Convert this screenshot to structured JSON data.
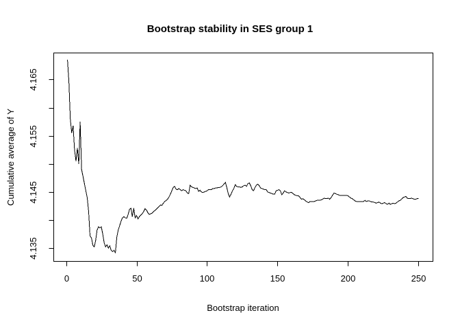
{
  "chart_data": {
    "type": "line",
    "title": "Bootstrap stability in SES group 1",
    "xlabel": "Bootstrap iteration",
    "ylabel": "Cumulative average of Y",
    "x_ticks": [
      0,
      50,
      100,
      150,
      200,
      250
    ],
    "y_ticks": [
      4.135,
      4.14,
      4.145,
      4.15,
      4.155,
      4.16,
      4.165
    ],
    "y_tick_labels": [
      "4.135",
      "",
      "4.145",
      "",
      "4.155",
      "",
      "4.165"
    ],
    "xlim": [
      -9,
      260
    ],
    "ylim": [
      4.1327,
      4.1698
    ],
    "x_start": 1,
    "grid": false,
    "line_color": "#000000",
    "axis_color": "#000000",
    "background_color": "#ffffff",
    "values": [
      4.1685,
      4.1645,
      4.158,
      4.1555,
      4.1568,
      4.1525,
      4.1505,
      4.1528,
      4.15,
      4.1575,
      4.149,
      4.1478,
      4.1465,
      4.1452,
      4.144,
      4.1415,
      4.1372,
      4.1368,
      4.1355,
      4.1352,
      4.1364,
      4.1382,
      4.1388,
      4.1386,
      4.1388,
      4.1375,
      4.136,
      4.1352,
      4.1356,
      4.135,
      4.1354,
      4.1346,
      4.1344,
      4.1346,
      4.1342,
      4.137,
      4.1382,
      4.139,
      4.1398,
      4.1404,
      4.1406,
      4.1404,
      4.1403,
      4.141,
      4.1419,
      4.1421,
      4.1406,
      4.1421,
      4.1404,
      4.1408,
      4.1402,
      4.1406,
      4.1409,
      4.1411,
      4.1415,
      4.142,
      4.1418,
      4.1413,
      4.141,
      4.1411,
      4.1412,
      4.1415,
      4.1417,
      4.1419,
      4.1422,
      4.1424,
      4.1427,
      4.1426,
      4.143,
      4.1433,
      4.1435,
      4.1437,
      4.1441,
      4.1446,
      4.1452,
      4.1458,
      4.146,
      4.1455,
      4.1454,
      4.1456,
      4.1454,
      4.1452,
      4.1454,
      4.1453,
      4.1452,
      4.1448,
      4.1447,
      4.1462,
      4.1459,
      4.1458,
      4.1457,
      4.1456,
      4.1457,
      4.1451,
      4.1453,
      4.145,
      4.1449,
      4.145,
      4.1451,
      4.1452,
      4.1454,
      4.1454,
      4.1454,
      4.1456,
      4.1456,
      4.1457,
      4.1457,
      4.1458,
      4.1458,
      4.1459,
      4.1461,
      4.1464,
      4.1467,
      4.1458,
      4.1447,
      4.1441,
      4.1446,
      4.1452,
      4.1456,
      4.1463,
      4.146,
      4.1459,
      4.1459,
      4.1458,
      4.1459,
      4.1461,
      4.1462,
      4.146,
      4.1465,
      4.1466,
      4.1461,
      4.1454,
      4.1452,
      4.1458,
      4.1462,
      4.1464,
      4.1461,
      4.1457,
      4.1456,
      4.1455,
      4.1454,
      4.1454,
      4.145,
      4.1449,
      4.1448,
      4.1447,
      4.1446,
      4.1446,
      4.1452,
      4.1453,
      4.1454,
      4.1452,
      4.1445,
      4.1448,
      4.1452,
      4.145,
      4.1449,
      4.1448,
      4.1449,
      4.1449,
      4.1447,
      4.1445,
      4.1444,
      4.1443,
      4.1443,
      4.144,
      4.1437,
      4.1438,
      4.1436,
      4.1434,
      4.1432,
      4.1431,
      4.1433,
      4.1433,
      4.1433,
      4.1433,
      4.1434,
      4.1435,
      4.1435,
      4.1435,
      4.1436,
      4.1437,
      4.1439,
      4.1438,
      4.1438,
      4.1439,
      4.1437,
      4.144,
      4.1444,
      4.1448,
      4.1447,
      4.1446,
      4.1445,
      4.1444,
      4.1444,
      4.1444,
      4.1444,
      4.1444,
      4.1444,
      4.1443,
      4.1441,
      4.1439,
      4.1438,
      4.1436,
      4.1434,
      4.1433,
      4.1433,
      4.1433,
      4.1433,
      4.1433,
      4.1433,
      4.1435,
      4.1433,
      4.1434,
      4.1434,
      4.1433,
      4.1432,
      4.1432,
      4.1431,
      4.143,
      4.1431,
      4.1432,
      4.143,
      4.1429,
      4.143,
      4.1431,
      4.1429,
      4.1428,
      4.143,
      4.1428,
      4.1429,
      4.143,
      4.1429,
      4.143,
      4.1432,
      4.1434,
      4.1435,
      4.1437,
      4.144,
      4.1441,
      4.1442,
      4.1439,
      4.1438,
      4.1438,
      4.1439,
      4.1438,
      4.1437,
      4.1437,
      4.1438,
      4.1438
    ]
  }
}
